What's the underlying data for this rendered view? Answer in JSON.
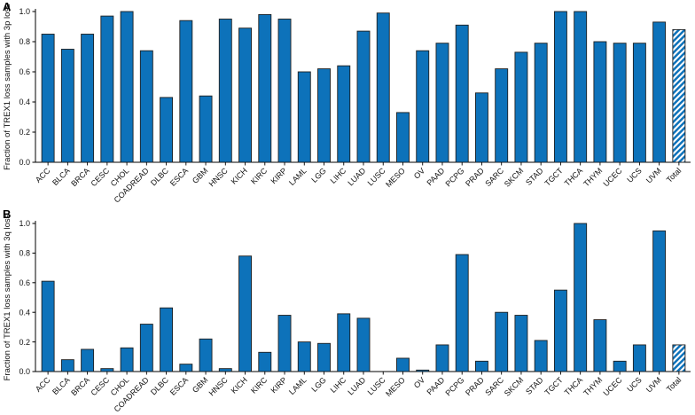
{
  "figure": {
    "background": "#ffffff",
    "panels": [
      {
        "label": "A"
      },
      {
        "label": "B"
      }
    ]
  },
  "colors": {
    "bar_fill": "#0d72ba",
    "bar_edge": "#1f1f1f",
    "axis": "#000000",
    "hatch_background": "#ffffff"
  },
  "chart_data": [
    {
      "type": "bar",
      "panel_label": "A",
      "title": "",
      "xlabel": "",
      "ylabel": "Fraction of TREX1 loss samples with 3p loss",
      "ylim": [
        0,
        1.0
      ],
      "yticks": [
        0.0,
        0.2,
        0.4,
        0.6,
        0.8,
        1.0
      ],
      "grid": false,
      "legend": null,
      "bar_color": "#0d72ba",
      "total_bar_style": "hatched-diagonal-stripes",
      "categories": [
        "ACC",
        "BLCA",
        "BRCA",
        "CESC",
        "CHOL",
        "COADREAD",
        "DLBC",
        "ESCA",
        "GBM",
        "HNSC",
        "KICH",
        "KIRC",
        "KIRP",
        "LAML",
        "LGG",
        "LIHC",
        "LUAD",
        "LUSC",
        "MESO",
        "OV",
        "PAAD",
        "PCPG",
        "PRAD",
        "SARC",
        "SKCM",
        "STAD",
        "TGCT",
        "THCA",
        "THYM",
        "UCEC",
        "UCS",
        "UVM",
        "Total"
      ],
      "values": [
        0.85,
        0.75,
        0.85,
        0.97,
        1.0,
        0.74,
        0.43,
        0.94,
        0.44,
        0.95,
        0.89,
        0.98,
        0.95,
        0.6,
        0.62,
        0.64,
        0.87,
        0.99,
        0.33,
        0.74,
        0.79,
        0.91,
        0.46,
        0.62,
        0.73,
        0.79,
        1.0,
        1.0,
        0.8,
        0.79,
        0.79,
        0.93,
        0.88
      ]
    },
    {
      "type": "bar",
      "panel_label": "B",
      "title": "",
      "xlabel": "",
      "ylabel": "Fraction of TREX1 loss samples with 3q loss",
      "ylim": [
        0,
        1.0
      ],
      "yticks": [
        0.0,
        0.2,
        0.4,
        0.6,
        0.8,
        1.0
      ],
      "grid": false,
      "legend": null,
      "bar_color": "#0d72ba",
      "total_bar_style": "hatched-diagonal-stripes",
      "categories": [
        "ACC",
        "BLCA",
        "BRCA",
        "CESC",
        "CHOL",
        "COADREAD",
        "DLBC",
        "ESCA",
        "GBM",
        "HNSC",
        "KICH",
        "KIRC",
        "KIRP",
        "LAML",
        "LGG",
        "LIHC",
        "LUAD",
        "LUSC",
        "MESO",
        "OV",
        "PAAD",
        "PCPG",
        "PRAD",
        "SARC",
        "SKCM",
        "STAD",
        "TGCT",
        "THCA",
        "THYM",
        "UCEC",
        "UCS",
        "UVM",
        "Total"
      ],
      "values": [
        0.61,
        0.08,
        0.15,
        0.02,
        0.16,
        0.32,
        0.43,
        0.05,
        0.22,
        0.02,
        0.78,
        0.13,
        0.38,
        0.2,
        0.19,
        0.39,
        0.36,
        0.0,
        0.09,
        0.01,
        0.18,
        0.79,
        0.07,
        0.4,
        0.38,
        0.21,
        0.55,
        1.0,
        0.35,
        0.07,
        0.18,
        0.95,
        0.18
      ]
    }
  ]
}
